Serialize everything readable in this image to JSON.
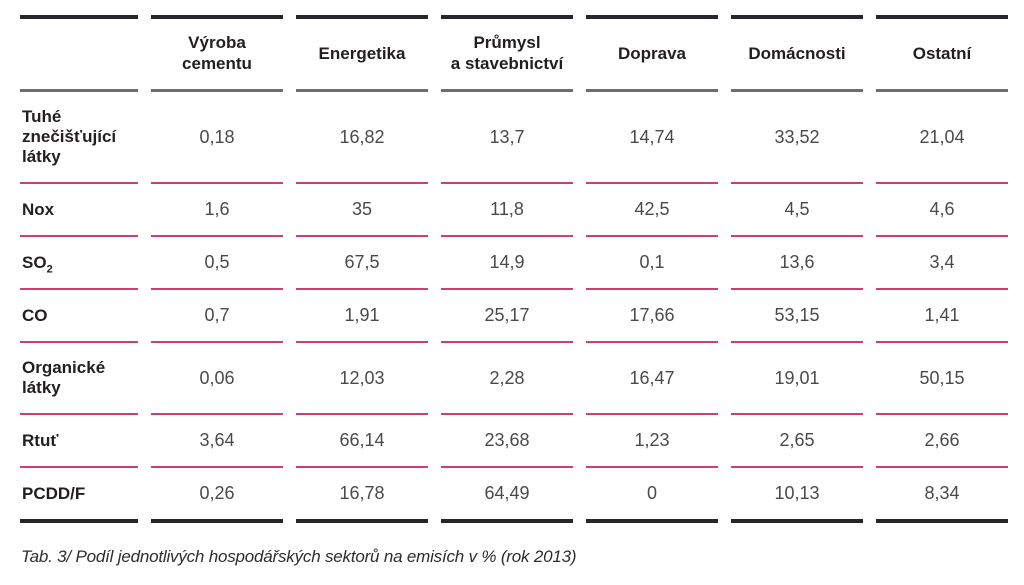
{
  "table": {
    "columns": [
      "Výroba\ncementu",
      "Energetika",
      "Průmysl\na stavebnictví",
      "Doprava",
      "Domácnosti",
      "Ostatní"
    ],
    "rows": [
      {
        "label": "Tuhé znečišťující látky",
        "values": [
          "0,18",
          "16,82",
          "13,7",
          "14,74",
          "33,52",
          "21,04"
        ]
      },
      {
        "label": "Nox",
        "values": [
          "1,6",
          "35",
          "11,8",
          "42,5",
          "4,5",
          "4,6"
        ]
      },
      {
        "label": "SO",
        "label_sub": "2",
        "values": [
          "0,5",
          "67,5",
          "14,9",
          "0,1",
          "13,6",
          "3,4"
        ]
      },
      {
        "label": "CO",
        "values": [
          "0,7",
          "1,91",
          "25,17",
          "17,66",
          "53,15",
          "1,41"
        ]
      },
      {
        "label": "Organické látky",
        "values": [
          "0,06",
          "12,03",
          "2,28",
          "16,47",
          "19,01",
          "50,15"
        ]
      },
      {
        "label": "Rtuť",
        "values": [
          "3,64",
          "66,14",
          "23,68",
          "1,23",
          "2,65",
          "2,66"
        ]
      },
      {
        "label": "PCDD/F",
        "values": [
          "0,26",
          "16,78",
          "64,49",
          "0",
          "10,13",
          "8,34"
        ]
      }
    ]
  },
  "caption": "Tab. 3/ Podíl jednotlivých hospodářských sektorů na emisích v % (rok 2013)",
  "colors": {
    "border_dark": "#28252b",
    "border_gray": "#6d6d70",
    "row_separator_red": "#cf3f6e",
    "header_text": "#231f20",
    "value_text": "#4a4a4d"
  }
}
